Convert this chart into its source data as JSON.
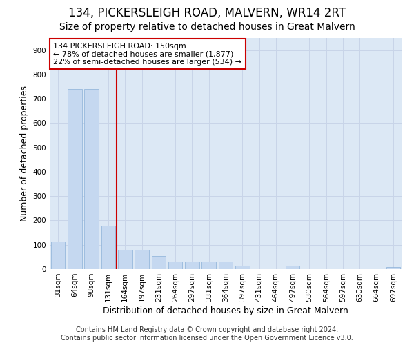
{
  "title": "134, PICKERSLEIGH ROAD, MALVERN, WR14 2RT",
  "subtitle": "Size of property relative to detached houses in Great Malvern",
  "xlabel": "Distribution of detached houses by size in Great Malvern",
  "ylabel": "Number of detached properties",
  "categories": [
    "31sqm",
    "64sqm",
    "98sqm",
    "131sqm",
    "164sqm",
    "197sqm",
    "231sqm",
    "264sqm",
    "297sqm",
    "331sqm",
    "364sqm",
    "397sqm",
    "431sqm",
    "464sqm",
    "497sqm",
    "530sqm",
    "564sqm",
    "597sqm",
    "630sqm",
    "664sqm",
    "697sqm"
  ],
  "values": [
    113,
    740,
    740,
    180,
    80,
    80,
    55,
    30,
    30,
    30,
    30,
    15,
    0,
    0,
    15,
    0,
    0,
    0,
    0,
    0,
    8
  ],
  "bar_color": "#c5d8f0",
  "bar_edge_color": "#8ab0d8",
  "vline_color": "#cc0000",
  "annotation_text": "134 PICKERSLEIGH ROAD: 150sqm\n← 78% of detached houses are smaller (1,877)\n22% of semi-detached houses are larger (534) →",
  "annotation_edge_color": "#cc0000",
  "ylim": [
    0,
    950
  ],
  "yticks": [
    0,
    100,
    200,
    300,
    400,
    500,
    600,
    700,
    800,
    900
  ],
  "grid_color": "#c8d4e8",
  "background_color": "#dce8f5",
  "footer": "Contains HM Land Registry data © Crown copyright and database right 2024.\nContains public sector information licensed under the Open Government Licence v3.0.",
  "title_fontsize": 12,
  "subtitle_fontsize": 10,
  "xlabel_fontsize": 9,
  "ylabel_fontsize": 9,
  "tick_fontsize": 7.5,
  "footer_fontsize": 7,
  "annot_fontsize": 8
}
